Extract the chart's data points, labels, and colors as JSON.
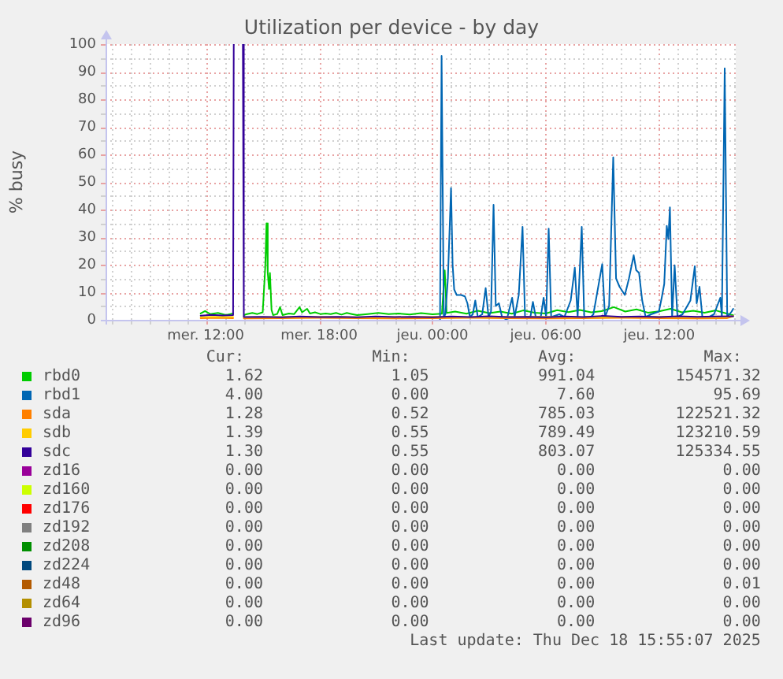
{
  "chart_data": {
    "type": "line",
    "title": "Utilization per device - by day",
    "ylabel": "% busy",
    "xlim": [
      "2025-12-17T06:42",
      "2025-12-18T16:03"
    ],
    "xticks": [
      {
        "value": "2025-12-17T07:00",
        "label": null
      },
      {
        "value": "2025-12-17T08:00",
        "label": null
      },
      {
        "value": "2025-12-17T09:00",
        "label": null
      },
      {
        "value": "2025-12-17T10:00",
        "label": null
      },
      {
        "value": "2025-12-17T11:00",
        "label": null
      },
      {
        "value": "2025-12-17T12:00",
        "label": "mer. 12:00"
      },
      {
        "value": "2025-12-17T13:00",
        "label": null
      },
      {
        "value": "2025-12-17T14:00",
        "label": null
      },
      {
        "value": "2025-12-17T15:00",
        "label": null
      },
      {
        "value": "2025-12-17T16:00",
        "label": null
      },
      {
        "value": "2025-12-17T17:00",
        "label": null
      },
      {
        "value": "2025-12-17T18:00",
        "label": "mer. 18:00"
      },
      {
        "value": "2025-12-17T19:00",
        "label": null
      },
      {
        "value": "2025-12-17T20:00",
        "label": null
      },
      {
        "value": "2025-12-17T21:00",
        "label": null
      },
      {
        "value": "2025-12-17T22:00",
        "label": null
      },
      {
        "value": "2025-12-17T23:00",
        "label": null
      },
      {
        "value": "2025-12-18T00:00",
        "label": "jeu. 00:00"
      },
      {
        "value": "2025-12-18T01:00",
        "label": null
      },
      {
        "value": "2025-12-18T02:00",
        "label": null
      },
      {
        "value": "2025-12-18T03:00",
        "label": null
      },
      {
        "value": "2025-12-18T04:00",
        "label": null
      },
      {
        "value": "2025-12-18T05:00",
        "label": null
      },
      {
        "value": "2025-12-18T06:00",
        "label": "jeu. 06:00"
      },
      {
        "value": "2025-12-18T07:00",
        "label": null
      },
      {
        "value": "2025-12-18T08:00",
        "label": null
      },
      {
        "value": "2025-12-18T09:00",
        "label": null
      },
      {
        "value": "2025-12-18T10:00",
        "label": null
      },
      {
        "value": "2025-12-18T11:00",
        "label": null
      },
      {
        "value": "2025-12-18T12:00",
        "label": "jeu. 12:00"
      },
      {
        "value": "2025-12-18T13:00",
        "label": null
      },
      {
        "value": "2025-12-18T14:00",
        "label": null
      },
      {
        "value": "2025-12-18T15:00",
        "label": null
      },
      {
        "value": "2025-12-18T16:00",
        "label": null
      }
    ],
    "ylim": [
      0,
      100
    ],
    "yticks": [
      0,
      {
        "value": 5,
        "label": null
      },
      10,
      {
        "value": 15,
        "label": null
      },
      20,
      {
        "value": 25,
        "label": null
      },
      30,
      {
        "value": 35,
        "label": null
      },
      40,
      {
        "value": 45,
        "label": null
      },
      50,
      {
        "value": 55,
        "label": null
      },
      60,
      {
        "value": 65,
        "label": null
      },
      70,
      {
        "value": 75,
        "label": null
      },
      80,
      {
        "value": 85,
        "label": null
      },
      90,
      {
        "value": 95,
        "label": null
      },
      100
    ],
    "grid": true,
    "legend": "bottom",
    "series": [
      {
        "name": "rbd0",
        "color": "#00cc00",
        "x": [
          "2025-12-17T11:44",
          "2025-12-17T11:58",
          "2025-12-17T12:14",
          "2025-12-17T12:39",
          "2025-12-17T13:04",
          "2025-12-17T13:27",
          "2025-12-17T13:42",
          "2025-12-17T14:02",
          "2025-12-17T14:11",
          "2025-12-17T14:28",
          "2025-12-17T14:44",
          "2025-12-17T15:01",
          "2025-12-17T15:09",
          "2025-12-17T15:13",
          "2025-12-17T15:17",
          "2025-12-17T15:21",
          "2025-12-17T15:24",
          "2025-12-17T15:29",
          "2025-12-17T15:34",
          "2025-12-17T15:47",
          "2025-12-17T15:56",
          "2025-12-17T16:04",
          "2025-12-17T16:24",
          "2025-12-17T16:41",
          "2025-12-17T16:58",
          "2025-12-17T17:06",
          "2025-12-17T17:22",
          "2025-12-17T17:31",
          "2025-12-17T17:47",
          "2025-12-17T18:04",
          "2025-12-17T18:21",
          "2025-12-17T18:37",
          "2025-12-17T18:54",
          "2025-12-17T19:11",
          "2025-12-17T19:28",
          "2025-12-17T19:44",
          "2025-12-17T20:01",
          "2025-12-17T20:34",
          "2025-12-17T21:08",
          "2025-12-17T21:41",
          "2025-12-17T22:12",
          "2025-12-17T22:48",
          "2025-12-17T23:24",
          "2025-12-18T00:00",
          "2025-12-18T00:30",
          "2025-12-18T00:39",
          "2025-12-18T00:45",
          "2025-12-18T01:12",
          "2025-12-18T01:48",
          "2025-12-18T02:24",
          "2025-12-18T03:00",
          "2025-12-18T03:36",
          "2025-12-18T04:12",
          "2025-12-18T04:48",
          "2025-12-18T05:24",
          "2025-12-18T06:00",
          "2025-12-18T06:36",
          "2025-12-18T07:12",
          "2025-12-18T07:48",
          "2025-12-18T08:24",
          "2025-12-18T09:00",
          "2025-12-18T09:36",
          "2025-12-18T10:12",
          "2025-12-18T10:48",
          "2025-12-18T11:24",
          "2025-12-18T12:00",
          "2025-12-18T12:36",
          "2025-12-18T13:12",
          "2025-12-18T13:48",
          "2025-12-18T14:24",
          "2025-12-18T15:00",
          "2025-12-18T15:36",
          "2025-12-18T15:55"
        ],
        "values": [
          2.3,
          3.2,
          2.1,
          2.5,
          1.7,
          2.3,
          null,
          1.7,
          2.1,
          2.5,
          2.1,
          2.7,
          18.9,
          35,
          17,
          11.2,
          17,
          3.6,
          1.7,
          2.1,
          4.6,
          1.7,
          2.3,
          2.1,
          4.6,
          2.7,
          4,
          2.3,
          2.7,
          2.1,
          2.3,
          2.1,
          2.5,
          1.9,
          2.5,
          2.1,
          1.7,
          2.1,
          2.5,
          2.1,
          2.3,
          1.9,
          2.4,
          2.0,
          2.2,
          17.9,
          2.5,
          3.0,
          2.2,
          3.3,
          2.4,
          3.0,
          2.2,
          3.4,
          2.6,
          2.3,
          3.5,
          2.8,
          3.6,
          2.7,
          3.2,
          4.6,
          3.0,
          3.8,
          2.6,
          3.1,
          4.0,
          2.7,
          3.3,
          2.6,
          3.4,
          2.2,
          1.62
        ]
      },
      {
        "name": "rbd1",
        "color": "#0066b3",
        "x": [
          "2025-12-18T00:24",
          "2025-12-18T00:29",
          "2025-12-18T00:36",
          "2025-12-18T00:41",
          "2025-12-18T00:49",
          "2025-12-18T00:59",
          "2025-12-18T01:04",
          "2025-12-18T01:09",
          "2025-12-18T01:17",
          "2025-12-18T01:31",
          "2025-12-18T01:43",
          "2025-12-18T01:51",
          "2025-12-18T01:59",
          "2025-12-18T02:08",
          "2025-12-18T02:16",
          "2025-12-18T02:24",
          "2025-12-18T02:38",
          "2025-12-18T02:49",
          "2025-12-18T02:58",
          "2025-12-18T03:06",
          "2025-12-18T03:14",
          "2025-12-18T03:21",
          "2025-12-18T03:31",
          "2025-12-18T03:41",
          "2025-12-18T03:56",
          "2025-12-18T04:13",
          "2025-12-18T04:21",
          "2025-12-18T04:34",
          "2025-12-18T04:46",
          "2025-12-18T04:54",
          "2025-12-18T05:11",
          "2025-12-18T05:19",
          "2025-12-18T05:28",
          "2025-12-18T05:44",
          "2025-12-18T05:53",
          "2025-12-18T06:01",
          "2025-12-18T06:09",
          "2025-12-18T06:17",
          "2025-12-18T06:43",
          "2025-12-18T06:59",
          "2025-12-18T07:19",
          "2025-12-18T07:32",
          "2025-12-18T07:41",
          "2025-12-18T07:54",
          "2025-12-18T08:02",
          "2025-12-18T08:23",
          "2025-12-18T08:31",
          "2025-12-18T08:59",
          "2025-12-18T09:08",
          "2025-12-18T09:21",
          "2025-12-18T09:34",
          "2025-12-18T09:43",
          "2025-12-18T09:54",
          "2025-12-18T10:11",
          "2025-12-18T10:24",
          "2025-12-18T10:39",
          "2025-12-18T10:47",
          "2025-12-18T10:56",
          "2025-12-18T11:06",
          "2025-12-18T11:17",
          "2025-12-18T11:34",
          "2025-12-18T11:59",
          "2025-12-18T12:08",
          "2025-12-18T12:16",
          "2025-12-18T12:24",
          "2025-12-18T12:29",
          "2025-12-18T12:34",
          "2025-12-18T12:41",
          "2025-12-18T12:49",
          "2025-12-18T12:58",
          "2025-12-18T13:14",
          "2025-12-18T13:39",
          "2025-12-18T13:53",
          "2025-12-18T13:59",
          "2025-12-18T14:08",
          "2025-12-18T14:17",
          "2025-12-18T14:38",
          "2025-12-18T14:54",
          "2025-12-18T15:14",
          "2025-12-18T15:19",
          "2025-12-18T15:28",
          "2025-12-18T15:36",
          "2025-12-18T15:50",
          "2025-12-18T15:55"
        ],
        "values": [
          0,
          95.69,
          1,
          2,
          15,
          47.8,
          20,
          11,
          9,
          9,
          8.5,
          6,
          1,
          2,
          7,
          1,
          2,
          11.5,
          1,
          3,
          41.7,
          5,
          6,
          1,
          0,
          8,
          1,
          9,
          33.7,
          1,
          1,
          6.5,
          1,
          1,
          8,
          1,
          33.1,
          1,
          2,
          1,
          7,
          18.9,
          1,
          33.7,
          1,
          1,
          2,
          20.2,
          1,
          5,
          58.9,
          15,
          12,
          9,
          15,
          23.4,
          18,
          17,
          7,
          1,
          2,
          3,
          8,
          13,
          34.1,
          29.3,
          40.8,
          1,
          19.8,
          1,
          2,
          7,
          19.4,
          6,
          12,
          1,
          1,
          2,
          8,
          1,
          91.2,
          1,
          3,
          4
        ]
      },
      {
        "name": "sda",
        "color": "#ff8000",
        "x": [
          "2025-12-17T11:44",
          "2025-12-17T12:42",
          "2025-12-17T13:27",
          "2025-12-17T13:42",
          "2025-12-17T14:01",
          "2025-12-17T16:00",
          "2025-12-17T18:00",
          "2025-12-17T20:00",
          "2025-12-17T22:00",
          "2025-12-18T00:00",
          "2025-12-18T02:00",
          "2025-12-18T04:00",
          "2025-12-18T06:00",
          "2025-12-18T08:00",
          "2025-12-18T10:00",
          "2025-12-18T12:00",
          "2025-12-18T14:00",
          "2025-12-18T15:36",
          "2025-12-18T15:55"
        ],
        "values": [
          0.6,
          0.7,
          0.6,
          null,
          0.5,
          0.6,
          0.7,
          0.6,
          0.5,
          0.6,
          0.7,
          0.6,
          0.5,
          0.6,
          0.7,
          0.6,
          0.5,
          0.6,
          1.28
        ]
      },
      {
        "name": "sdb",
        "color": "#ffcc00",
        "x": [
          "2025-12-17T11:44",
          "2025-12-17T12:42",
          "2025-12-17T13:27",
          "2025-12-17T13:42",
          "2025-12-17T14:01",
          "2025-12-17T16:00",
          "2025-12-17T18:00",
          "2025-12-17T20:00",
          "2025-12-17T22:00",
          "2025-12-18T00:00",
          "2025-12-18T02:00",
          "2025-12-18T04:00",
          "2025-12-18T06:00",
          "2025-12-18T08:00",
          "2025-12-18T10:00",
          "2025-12-18T12:00",
          "2025-12-18T14:00",
          "2025-12-18T15:36",
          "2025-12-18T15:55"
        ],
        "values": [
          1.0,
          1.1,
          1.0,
          null,
          0.9,
          1.0,
          1.1,
          0.9,
          1.0,
          1.1,
          0.9,
          1.0,
          1.1,
          0.9,
          1.0,
          1.1,
          0.9,
          1.0,
          1.39
        ]
      },
      {
        "name": "sdc",
        "color": "#330099",
        "x": [
          "2025-12-17T11:44",
          "2025-12-17T12:18",
          "2025-12-17T12:54",
          "2025-12-17T13:27",
          "2025-12-17T13:29",
          "2025-12-17T13:42",
          "2025-12-17T13:58",
          "2025-12-17T14:01",
          "2025-12-17T15:00",
          "2025-12-17T16:00",
          "2025-12-17T17:00",
          "2025-12-17T18:00",
          "2025-12-17T19:00",
          "2025-12-17T20:00",
          "2025-12-17T21:00",
          "2025-12-17T22:00",
          "2025-12-17T23:00",
          "2025-12-18T00:00",
          "2025-12-18T01:00",
          "2025-12-18T02:00",
          "2025-12-18T03:00",
          "2025-12-18T04:00",
          "2025-12-18T05:00",
          "2025-12-18T06:00",
          "2025-12-18T07:00",
          "2025-12-18T08:00",
          "2025-12-18T09:00",
          "2025-12-18T10:00",
          "2025-12-18T11:00",
          "2025-12-18T12:00",
          "2025-12-18T13:00",
          "2025-12-18T14:00",
          "2025-12-18T15:00",
          "2025-12-18T15:55"
        ],
        "values": [
          1.5,
          1.8,
          1.6,
          1.7,
          100,
          null,
          100,
          1.0,
          1.1,
          0.9,
          1.2,
          1.0,
          1.1,
          0.9,
          1.2,
          1.0,
          1.1,
          0.9,
          1.2,
          1.0,
          1.3,
          1.0,
          1.1,
          0.9,
          1.2,
          1.0,
          1.4,
          1.1,
          1.2,
          1.0,
          1.3,
          1.1,
          1.2,
          1.3
        ]
      },
      {
        "name": "zd16",
        "color": "#990099"
      },
      {
        "name": "zd160",
        "color": "#ccff00"
      },
      {
        "name": "zd176",
        "color": "#ff0000"
      },
      {
        "name": "zd192",
        "color": "#808080"
      },
      {
        "name": "zd208",
        "color": "#008f00"
      },
      {
        "name": "zd224",
        "color": "#00487d"
      },
      {
        "name": "zd48",
        "color": "#b35a00"
      },
      {
        "name": "zd64",
        "color": "#b38f00"
      },
      {
        "name": "zd96",
        "color": "#6b006b"
      }
    ],
    "annotations": [
      "Cur:",
      "Min:",
      "Avg:",
      "Max:",
      "1.62",
      "1.05",
      "991.04",
      "154571.32",
      "4.00",
      "0.00",
      "7.60",
      "95.69",
      "1.28",
      "0.52",
      "785.03",
      "122521.32",
      "1.39",
      "0.55",
      "789.49",
      "123210.59",
      "1.30",
      "0.55",
      "803.07",
      "125334.55",
      "0.00",
      "0.00",
      "0.00",
      "0.00",
      "0.00",
      "0.00",
      "0.00",
      "0.00",
      "0.00",
      "0.00",
      "0.00",
      "0.00",
      "0.00",
      "0.00",
      "0.00",
      "0.00",
      "0.00",
      "0.00",
      "0.00",
      "0.00",
      "0.00",
      "0.00",
      "0.00",
      "0.00",
      "0.00",
      "0.00",
      "0.00",
      "0.01",
      "0.00",
      "0.00",
      "0.00",
      "0.00",
      "0.00",
      "0.00",
      "0.00",
      "0.00",
      "Last update: Thu Dec 18 15:55:07 2025"
    ]
  }
}
